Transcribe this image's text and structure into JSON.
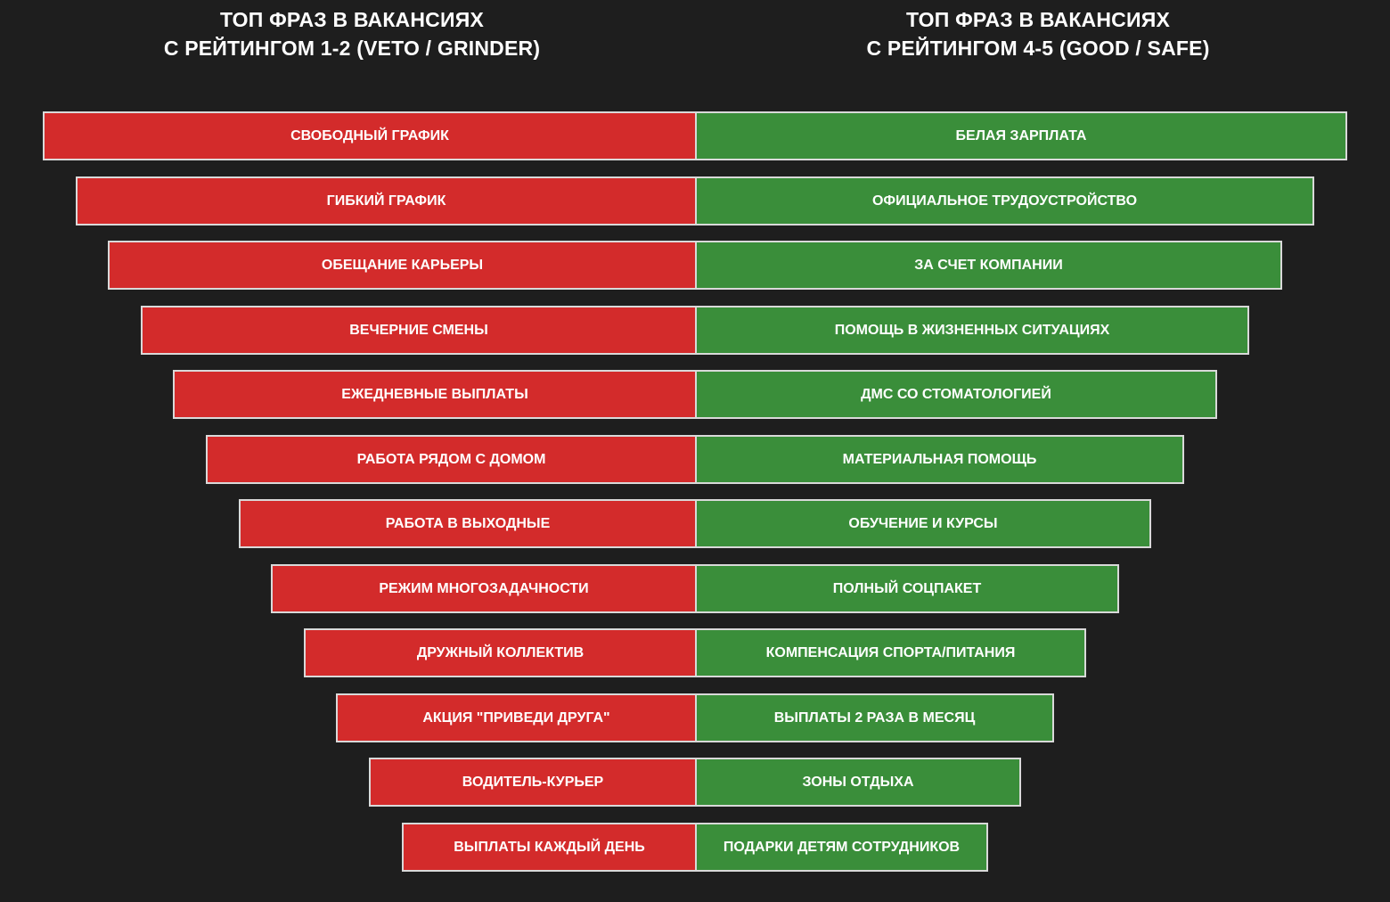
{
  "headers": {
    "left": {
      "line1": "ТОП ФРАЗ В ВАКАНСИЯХ",
      "line2": "С РЕЙТИНГОМ 1-2 (VETO / GRINDER)"
    },
    "right": {
      "line1": "ТОП ФРАЗ В ВАКАНСИЯХ",
      "line2": "С РЕЙТИНГОМ 4-5 (GOOD / SAFE)"
    }
  },
  "colors": {
    "background": "#1e1e1e",
    "left_bar": "#d32b2b",
    "right_bar": "#3a8e3a",
    "border": "#d9d9d9",
    "text": "#ffffff"
  },
  "rows": [
    {
      "left": "СВОБОДНЫЙ ГРАФИК",
      "right": "БЕЛАЯ ЗАРПЛАТА"
    },
    {
      "left": "ГИБКИЙ ГРАФИК",
      "right": "ОФИЦИАЛЬНОЕ ТРУДОУСТРОЙСТВО"
    },
    {
      "left": "ОБЕЩАНИЕ КАРЬЕРЫ",
      "right": "ЗА СЧЕТ КОМПАНИИ"
    },
    {
      "left": "ВЕЧЕРНИЕ СМЕНЫ",
      "right": "ПОМОЩЬ В ЖИЗНЕННЫХ СИТУАЦИЯХ"
    },
    {
      "left": "ЕЖЕДНЕВНЫЕ ВЫПЛАТЫ",
      "right": "ДМС СО СТОМАТОЛОГИЕЙ"
    },
    {
      "left": "РАБОТА РЯДОМ С ДОМОМ",
      "right": "МАТЕРИАЛЬНАЯ ПОМОЩЬ"
    },
    {
      "left": "РАБОТА В ВЫХОДНЫЕ",
      "right": "ОБУЧЕНИЕ И КУРСЫ"
    },
    {
      "left": "РЕЖИМ МНОГОЗАДАЧНОСТИ",
      "right": "ПОЛНЫЙ СОЦПАКЕТ"
    },
    {
      "left": "ДРУЖНЫЙ КОЛЛЕКТИВ",
      "right": "КОМПЕНСАЦИЯ СПОРТА/ПИТАНИЯ"
    },
    {
      "left": "АКЦИЯ \"ПРИВЕДИ ДРУГА\"",
      "right": "ВЫПЛАТЫ 2 РАЗА В МЕСЯЦ"
    },
    {
      "left": "ВОДИТЕЛЬ-КУРЬЕР",
      "right": "ЗОНЫ ОТДЫХА"
    },
    {
      "left": "ВЫПЛАТЫ КАЖДЫЙ ДЕНЬ",
      "right": "ПОДАРКИ ДЕТЯМ СОТРУДНИКОВ"
    }
  ]
}
